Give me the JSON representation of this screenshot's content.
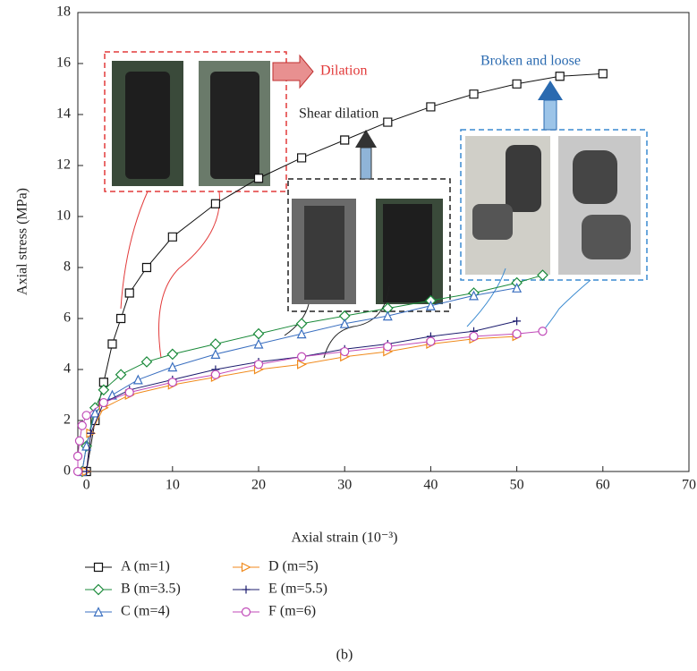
{
  "chart_data": {
    "type": "line",
    "xlabel": "Axial strain (10⁻³)",
    "ylabel": "Axial stress (MPa)",
    "caption": "(b)",
    "annotations": [
      "Dilation",
      "Shear dilation",
      "Broken and loose"
    ],
    "xlim": [
      -1,
      70
    ],
    "xticks": [
      0,
      10,
      20,
      30,
      40,
      50,
      60,
      70
    ],
    "ylim": [
      0,
      18
    ],
    "yticks": [
      0,
      2,
      4,
      6,
      8,
      10,
      12,
      14,
      16,
      18
    ],
    "grid": false,
    "series": [
      {
        "name": "A (m=1)",
        "color": "#111111",
        "marker": "square",
        "x": [
          0,
          1,
          2,
          3,
          4,
          5,
          7,
          10,
          15,
          20,
          25,
          30,
          35,
          40,
          45,
          50,
          55,
          60
        ],
        "values": [
          0,
          2,
          3.5,
          5,
          6,
          7,
          8,
          9.2,
          10.5,
          11.5,
          12.3,
          13,
          13.7,
          14.3,
          14.8,
          15.2,
          15.5,
          15.6
        ]
      },
      {
        "name": "B (m=3.5)",
        "color": "#1a8a3a",
        "marker": "diamond",
        "x": [
          -0.5,
          0,
          1,
          2,
          4,
          7,
          10,
          15,
          20,
          25,
          30,
          35,
          40,
          45,
          50,
          53
        ],
        "values": [
          0,
          1,
          2.5,
          3.2,
          3.8,
          4.3,
          4.6,
          5,
          5.4,
          5.8,
          6.1,
          6.4,
          6.7,
          7,
          7.4,
          7.7
        ]
      },
      {
        "name": "C (m=4)",
        "color": "#3a6fc0",
        "marker": "triangle-up",
        "x": [
          -0.5,
          0,
          1,
          3,
          6,
          10,
          15,
          20,
          25,
          30,
          35,
          40,
          45,
          50
        ],
        "values": [
          0,
          1,
          2.3,
          3,
          3.6,
          4.1,
          4.6,
          5,
          5.4,
          5.8,
          6.1,
          6.5,
          6.9,
          7.2
        ]
      },
      {
        "name": "D (m=5)",
        "color": "#f08a1c",
        "marker": "triangle-right",
        "x": [
          0,
          0.5,
          2,
          5,
          10,
          15,
          20,
          25,
          30,
          35,
          40,
          45,
          50
        ],
        "values": [
          0,
          1.5,
          2.5,
          3,
          3.4,
          3.7,
          4,
          4.2,
          4.5,
          4.7,
          5,
          5.2,
          5.3
        ]
      },
      {
        "name": "E (m=5.5)",
        "color": "#1c1c6e",
        "marker": "plus",
        "x": [
          0,
          0.5,
          2,
          5,
          10,
          15,
          20,
          25,
          30,
          35,
          40,
          45,
          50
        ],
        "values": [
          0,
          1.5,
          2.7,
          3.2,
          3.6,
          4,
          4.3,
          4.5,
          4.8,
          5,
          5.3,
          5.5,
          5.9
        ]
      },
      {
        "name": "F (m=6)",
        "color": "#c04ab8",
        "marker": "circle",
        "x": [
          -1,
          -1,
          -0.8,
          -0.5,
          0,
          2,
          5,
          10,
          15,
          20,
          25,
          30,
          35,
          40,
          45,
          50,
          53
        ],
        "values": [
          0,
          0.6,
          1.2,
          1.8,
          2.2,
          2.7,
          3.1,
          3.5,
          3.8,
          4.2,
          4.5,
          4.7,
          4.9,
          5.1,
          5.3,
          5.4,
          5.5
        ]
      }
    ]
  }
}
